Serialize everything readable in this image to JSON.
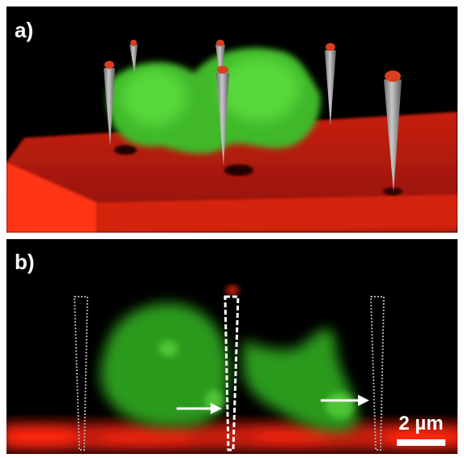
{
  "panels": [
    {
      "label": "a)"
    },
    {
      "label": "b)"
    }
  ],
  "scale_bar": {
    "label": "2 µm"
  }
}
